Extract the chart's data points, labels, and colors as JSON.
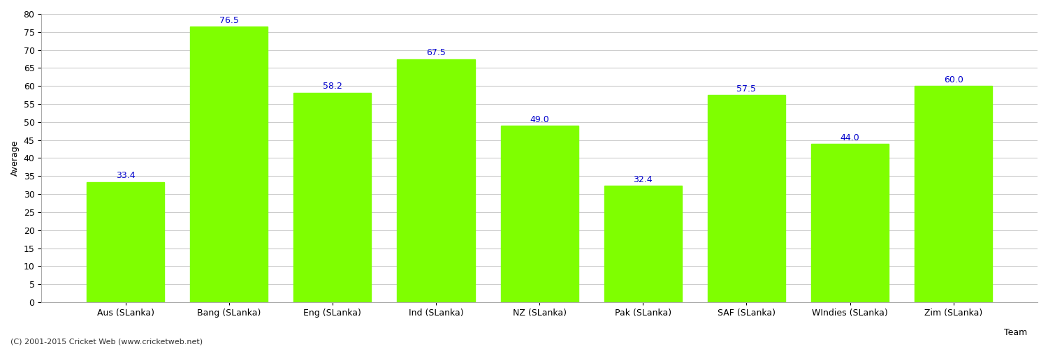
{
  "categories": [
    "Aus (SLanka)",
    "Bang (SLanka)",
    "Eng (SLanka)",
    "Ind (SLanka)",
    "NZ (SLanka)",
    "Pak (SLanka)",
    "SAF (SLanka)",
    "WIndies (SLanka)",
    "Zim (SLanka)"
  ],
  "values": [
    33.4,
    76.5,
    58.2,
    67.5,
    49.0,
    32.4,
    57.5,
    44.0,
    60.0
  ],
  "bar_color": "#7fff00",
  "label_color": "#0000cc",
  "ylabel": "Average",
  "xlabel": "Team",
  "ylim": [
    0,
    80
  ],
  "yticks": [
    0,
    5,
    10,
    15,
    20,
    25,
    30,
    35,
    40,
    45,
    50,
    55,
    60,
    65,
    70,
    75,
    80
  ],
  "footer": "(C) 2001-2015 Cricket Web (www.cricketweb.net)",
  "background_color": "#ffffff",
  "grid_color": "#cccccc",
  "label_fontsize": 9,
  "axis_fontsize": 9,
  "bar_width": 0.75
}
